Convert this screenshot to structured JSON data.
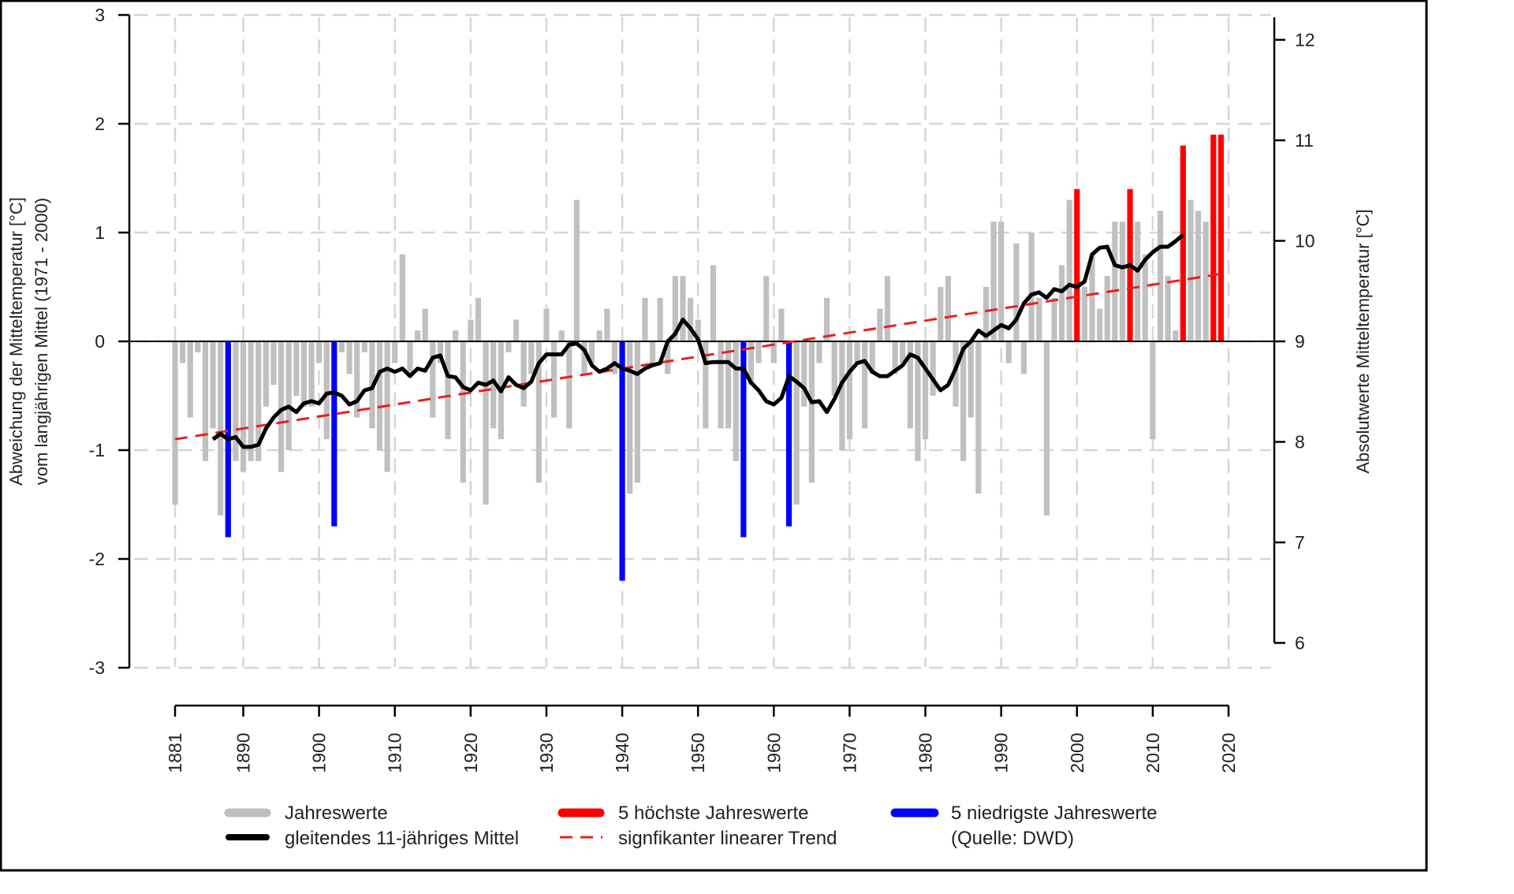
{
  "chart_data": {
    "type": "bar",
    "ylabel_left": [
      "Abweichung der Mitteltemperatur [°C]",
      "vom langjährigen Mittel (1971 - 2000)"
    ],
    "ylabel_right": "Absolutwerte Mitteltemperatur [°C]",
    "ylim": [
      -3,
      3
    ],
    "yticks_left": [
      "3",
      "2",
      "1",
      "0",
      "-1",
      "-2",
      "-3"
    ],
    "yticks_left_values": [
      3,
      2,
      1,
      0,
      -1,
      -2,
      -3
    ],
    "yticks_right": [
      "12",
      "11",
      "10",
      "9",
      "8",
      "7",
      "6"
    ],
    "yticks_right_values": [
      12,
      11,
      10,
      9,
      8,
      7,
      6
    ],
    "right_axis_zero": 9,
    "xticks": [
      "1881",
      "1890",
      "1900",
      "1910",
      "1920",
      "1930",
      "1940",
      "1950",
      "1960",
      "1970",
      "1980",
      "1990",
      "2000",
      "2010",
      "2020"
    ],
    "xlim": [
      1881,
      2020
    ],
    "grid": true,
    "colors": {
      "bars": "#c0c0c0",
      "highest": "#ff0000",
      "lowest": "#0000ff",
      "mean": "#000000",
      "trend": "#e8201c"
    },
    "start_year": 1881,
    "values": [
      -1.5,
      -0.2,
      -0.7,
      -0.1,
      -1.1,
      -0.8,
      -1.6,
      -1.8,
      -1.1,
      -1.2,
      -1.1,
      -1.1,
      -0.6,
      -0.4,
      -1.2,
      -1.0,
      -0.5,
      -0.6,
      -0.6,
      -0.2,
      -0.9,
      -1.7,
      -0.1,
      -0.3,
      -0.7,
      -0.1,
      -0.8,
      -1.0,
      -1.2,
      -0.2,
      0.8,
      -0.3,
      0.1,
      0.3,
      -0.7,
      -0.2,
      -0.9,
      0.1,
      -1.3,
      0.2,
      0.4,
      -1.5,
      -0.8,
      -0.9,
      -0.1,
      0.2,
      -0.6,
      -0.3,
      -1.3,
      0.3,
      -0.7,
      0.1,
      -0.8,
      1.3,
      -0.3,
      -0.2,
      0.1,
      0.3,
      -0.3,
      -2.2,
      -1.4,
      -1.3,
      0.4,
      -0.2,
      0.4,
      -0.3,
      0.6,
      0.6,
      0.4,
      0.2,
      -0.8,
      0.7,
      -0.8,
      -0.8,
      -1.1,
      -1.8,
      -0.4,
      -0.2,
      0.6,
      -0.2,
      0.3,
      -1.7,
      -1.5,
      -0.6,
      -1.3,
      -0.2,
      0.4,
      -0.5,
      -1.0,
      -0.9,
      -0.2,
      -0.8,
      -0.3,
      0.3,
      0.6,
      -0.3,
      -0.2,
      -0.8,
      -1.1,
      -0.9,
      -0.5,
      0.5,
      0.6,
      -0.6,
      -1.1,
      -0.7,
      -1.4,
      0.5,
      1.1,
      1.1,
      -0.2,
      0.9,
      -0.3,
      1.0,
      0.4,
      -1.6,
      0.4,
      0.7,
      1.3,
      1.4,
      0.5,
      0.8,
      0.3,
      0.6,
      1.1,
      1.1,
      1.4,
      1.1,
      0.8,
      -0.9,
      1.2,
      0.6,
      0.1,
      1.8,
      1.3,
      1.2,
      1.1,
      1.9,
      1.9
    ],
    "highest_years": [
      2000,
      2007,
      2014,
      2018,
      2019
    ],
    "lowest_years": [
      1888,
      1902,
      1940,
      1956,
      1962
    ],
    "moving_mean_start_year": 1886,
    "moving_mean": [
      -0.9,
      -0.85,
      -0.9,
      -0.88,
      -0.97,
      -0.97,
      -0.95,
      -0.8,
      -0.7,
      -0.63,
      -0.6,
      -0.65,
      -0.57,
      -0.55,
      -0.57,
      -0.48,
      -0.47,
      -0.5,
      -0.58,
      -0.55,
      -0.45,
      -0.43,
      -0.28,
      -0.25,
      -0.28,
      -0.25,
      -0.32,
      -0.25,
      -0.27,
      -0.15,
      -0.13,
      -0.32,
      -0.33,
      -0.42,
      -0.45,
      -0.38,
      -0.4,
      -0.36,
      -0.46,
      -0.33,
      -0.4,
      -0.43,
      -0.37,
      -0.2,
      -0.12,
      -0.12,
      -0.12,
      -0.03,
      -0.02,
      -0.08,
      -0.22,
      -0.28,
      -0.25,
      -0.2,
      -0.25,
      -0.27,
      -0.3,
      -0.25,
      -0.22,
      -0.2,
      0.0,
      0.07,
      0.2,
      0.12,
      0.02,
      -0.2,
      -0.19,
      -0.19,
      -0.19,
      -0.25,
      -0.25,
      -0.38,
      -0.45,
      -0.55,
      -0.58,
      -0.52,
      -0.32,
      -0.37,
      -0.43,
      -0.56,
      -0.55,
      -0.65,
      -0.53,
      -0.38,
      -0.28,
      -0.2,
      -0.18,
      -0.28,
      -0.32,
      -0.32,
      -0.27,
      -0.22,
      -0.12,
      -0.15,
      -0.25,
      -0.35,
      -0.45,
      -0.4,
      -0.25,
      -0.07,
      0.0,
      0.1,
      0.05,
      0.1,
      0.15,
      0.12,
      0.2,
      0.35,
      0.43,
      0.45,
      0.4,
      0.48,
      0.46,
      0.52,
      0.5,
      0.55,
      0.8,
      0.86,
      0.87,
      0.7,
      0.68,
      0.7,
      0.65,
      0.75,
      0.82,
      0.87,
      0.87,
      0.92,
      0.98
    ],
    "trend": {
      "x": [
        1881,
        2019
      ],
      "y": [
        -0.9,
        0.62
      ]
    },
    "legend": {
      "placement": "bottom",
      "items": [
        {
          "label": "Jahreswerte",
          "style": "bar-gray"
        },
        {
          "label": "gleitendes 11-jähriges Mittel",
          "style": "line-black"
        },
        {
          "label": "5 höchste Jahreswerte",
          "style": "bar-red"
        },
        {
          "label": "signfikanter linearer Trend",
          "style": "dash-red"
        },
        {
          "label": "5 niedrigste Jahreswerte",
          "style": "bar-blue"
        }
      ],
      "source": "(Quelle: DWD)"
    }
  }
}
